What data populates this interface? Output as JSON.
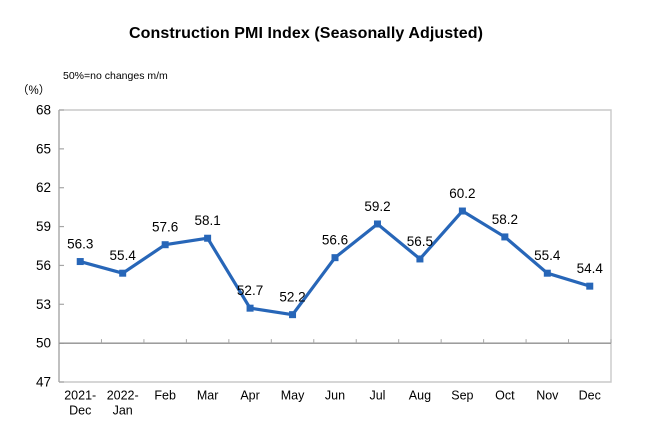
{
  "title": "Construction PMI Index (Seasonally Adjusted)",
  "subtitle": "50%=no changes m/m",
  "unit_label": "（%）",
  "colors": {
    "line": "#2766b8",
    "marker": "#2766b8",
    "plot_border": "#c9c9c9",
    "axis_line": "#a6a6a6",
    "baseline": "#8f8f8f",
    "tick": "#a6a6a6",
    "text": "#000000"
  },
  "chart_data": {
    "type": "line",
    "title": "Construction PMI Index (Seasonally Adjusted)",
    "subtitle": "50%=no changes m/m",
    "ylabel": "（%）",
    "xlabel": "",
    "categories": [
      "2021-Dec",
      "2022-Jan",
      "Feb",
      "Mar",
      "Apr",
      "May",
      "Jun",
      "Jul",
      "Aug",
      "Sep",
      "Oct",
      "Nov",
      "Dec"
    ],
    "category_display_lines": [
      [
        "2021-",
        "Dec"
      ],
      [
        "2022-",
        "Jan"
      ],
      [
        "Feb"
      ],
      [
        "Mar"
      ],
      [
        "Apr"
      ],
      [
        "May"
      ],
      [
        "Jun"
      ],
      [
        "Jul"
      ],
      [
        "Aug"
      ],
      [
        "Sep"
      ],
      [
        "Oct"
      ],
      [
        "Nov"
      ],
      [
        "Dec"
      ]
    ],
    "values": [
      56.3,
      55.4,
      57.6,
      58.1,
      52.7,
      52.2,
      56.6,
      59.2,
      56.5,
      60.2,
      58.2,
      55.4,
      54.4
    ],
    "data_labels_visible": true,
    "ylim": [
      47,
      68
    ],
    "yticks": [
      47,
      50,
      53,
      56,
      59,
      62,
      65,
      68
    ],
    "baseline_value": 50,
    "grid": false,
    "legend_position": "none",
    "marker_style": "square"
  }
}
